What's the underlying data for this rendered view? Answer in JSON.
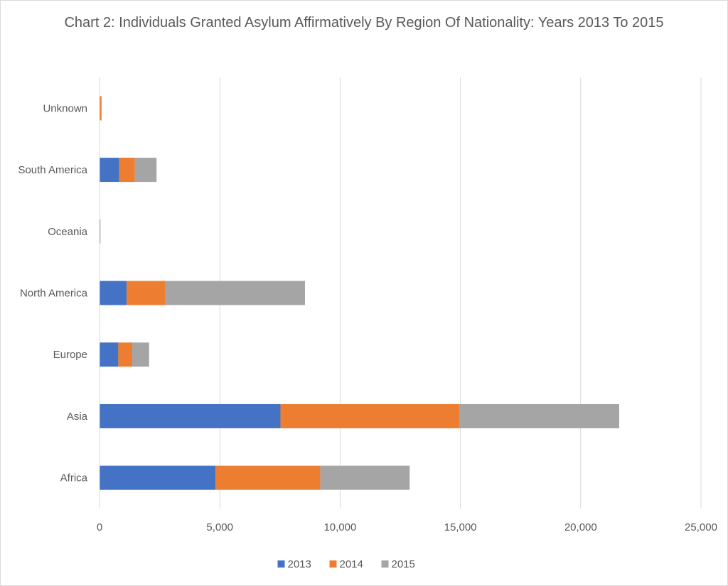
{
  "chart_data": {
    "type": "bar",
    "orientation": "horizontal",
    "stacked": true,
    "title": "Chart 2: Individuals Granted Asylum Affirmatively By Region Of Nationality: Years 2013 To 2015",
    "xlabel": "",
    "ylabel": "",
    "categories": [
      "Africa",
      "Asia",
      "Europe",
      "North America",
      "Oceania",
      "South America",
      "Unknown"
    ],
    "series": [
      {
        "name": "2013",
        "color": "#4472c4",
        "values": [
          4820,
          7520,
          780,
          1130,
          10,
          820,
          15
        ]
      },
      {
        "name": "2014",
        "color": "#ed7d31",
        "values": [
          4360,
          7430,
          580,
          1610,
          10,
          650,
          50
        ]
      },
      {
        "name": "2015",
        "color": "#a5a5a5",
        "values": [
          3710,
          6650,
          700,
          5800,
          20,
          900,
          25
        ]
      }
    ],
    "xlim": [
      0,
      25000
    ],
    "xticks": [
      0,
      5000,
      10000,
      15000,
      20000,
      25000
    ],
    "xtick_labels": [
      "0",
      "5,000",
      "10,000",
      "15,000",
      "20,000",
      "25,000"
    ],
    "grid": "vertical",
    "legend_position": "bottom"
  }
}
